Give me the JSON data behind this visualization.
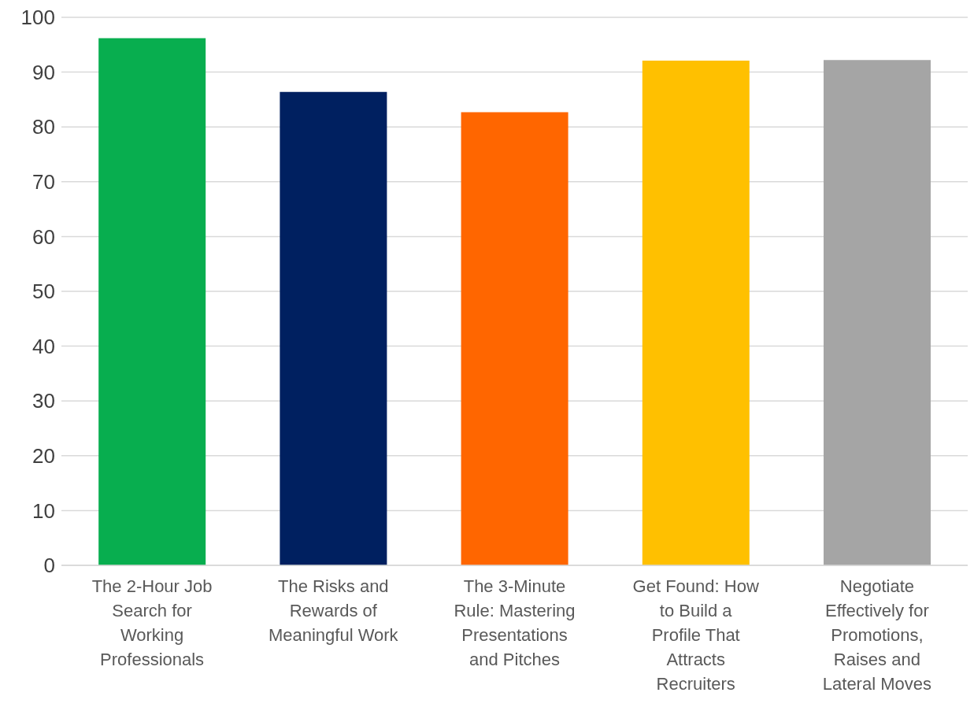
{
  "chart_data": {
    "type": "bar",
    "categories": [
      "The 2-Hour Job Search for Working Professionals",
      "The Risks and Rewards of Meaningful Work",
      "The 3-Minute Rule: Mastering Presentations and Pitches",
      "Get Found: How to Build a Profile That Attracts Recruiters",
      "Negotiate Effectively for Promotions, Raises and Lateral Moves"
    ],
    "values": [
      96.2,
      86.4,
      82.7,
      92.1,
      92.2
    ],
    "colors": [
      "#08ae4f",
      "#002060",
      "#ff6600",
      "#ffc000",
      "#a5a5a5"
    ],
    "ylim": [
      0,
      100
    ],
    "yticks": [
      0,
      10,
      20,
      30,
      40,
      50,
      60,
      70,
      80,
      90,
      100
    ],
    "grid": "y"
  }
}
